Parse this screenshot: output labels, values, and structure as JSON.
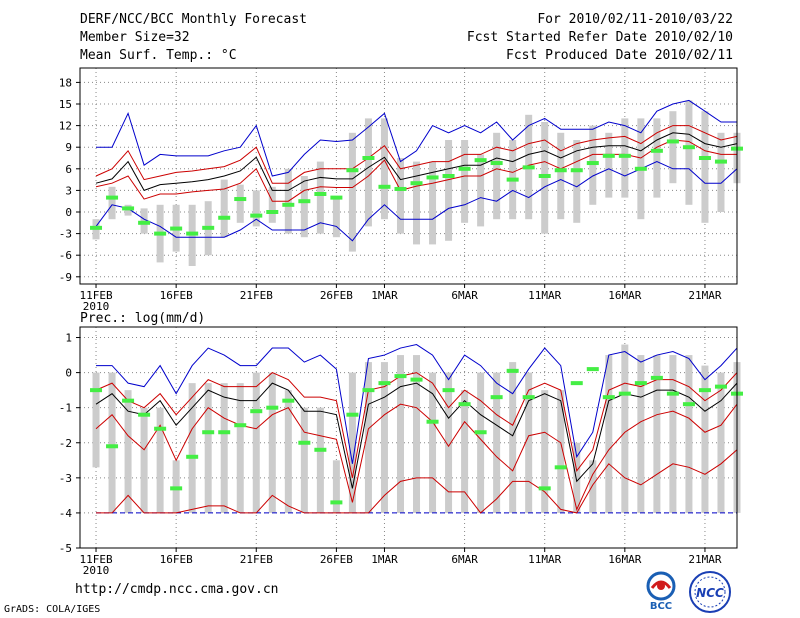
{
  "header": {
    "title": "DERF/NCC/BCC Monthly Forecast",
    "member_size": "Member Size=32",
    "variable_top": "Mean Surf. Temp.: °C",
    "forecast_range": "For 2010/02/11-2010/03/22",
    "start_date": "Fcst Started Refer Date 2010/02/10",
    "produced_date": "Fcst Produced Date 2010/02/11"
  },
  "footer": {
    "url": "http://cmdp.ncc.cma.gov.cn",
    "credit": "GrADS: COLA/IGES",
    "logo_bcc": "BCC",
    "logo_ncc": "NCC"
  },
  "colors": {
    "max_min": "#0000cc",
    "spread": "#cc0000",
    "mean": "#000000",
    "bar": "#cccccc",
    "median": "#44ee44",
    "floor": "#0000cc"
  },
  "chart_data": [
    {
      "type": "boxplot-ensemble",
      "title": "Mean Surf. Temp.: °C",
      "ylim": [
        -10,
        20
      ],
      "yticks": [
        -9,
        -6,
        -3,
        0,
        3,
        6,
        9,
        12,
        15,
        18
      ],
      "xticks": [
        {
          "day": 0,
          "label": "11FEB",
          "sub": "2010"
        },
        {
          "day": 5,
          "label": "16FEB"
        },
        {
          "day": 10,
          "label": "21FEB"
        },
        {
          "day": 15,
          "label": "26FEB"
        },
        {
          "day": 18,
          "label": "1MAR"
        },
        {
          "day": 23,
          "label": "6MAR"
        },
        {
          "day": 28,
          "label": "11MAR"
        },
        {
          "day": 33,
          "label": "16MAR"
        },
        {
          "day": 38,
          "label": "21MAR"
        }
      ],
      "xlim": [
        -1,
        40
      ],
      "series": [
        {
          "name": "max",
          "values": [
            9,
            9,
            13.7,
            6.5,
            8,
            7.8,
            7.8,
            7.8,
            8.5,
            9,
            12,
            5,
            5.5,
            8,
            10,
            9.8,
            10,
            11.8,
            13.7,
            7,
            8.5,
            12,
            11,
            12,
            11,
            12.5,
            10,
            12,
            13,
            11.5,
            11.5,
            11.5,
            12.5,
            12,
            11,
            14,
            15,
            15.5,
            14,
            12.5,
            12.5
          ]
        },
        {
          "name": "upper",
          "values": [
            5,
            6,
            8.5,
            4.5,
            5,
            5.5,
            5.7,
            6,
            6.3,
            7.2,
            9,
            4,
            4,
            5.5,
            6,
            6,
            6,
            7.5,
            9.2,
            6,
            6.5,
            7,
            7,
            8,
            8,
            9,
            8.5,
            9.5,
            10,
            8.5,
            9.5,
            10,
            10.3,
            10.5,
            9.5,
            11,
            12,
            12,
            11,
            10,
            10.5
          ]
        },
        {
          "name": "mean",
          "values": [
            4,
            4.6,
            7,
            3,
            3.8,
            4,
            4.2,
            4.5,
            5,
            5.7,
            7.6,
            3,
            3,
            4.3,
            4.8,
            4.6,
            4.6,
            6.2,
            7.6,
            4.5,
            5,
            5.5,
            6,
            6.5,
            6.5,
            7.5,
            7,
            8,
            8.5,
            7.5,
            8.5,
            9,
            9.2,
            9.2,
            8.5,
            10,
            11,
            10.8,
            9.5,
            9,
            9.5
          ]
        },
        {
          "name": "lower",
          "values": [
            3.5,
            4,
            5,
            1.8,
            2.5,
            2.5,
            2.8,
            3,
            3.2,
            4,
            6,
            1.5,
            1.5,
            3,
            3.5,
            3.4,
            3.4,
            5,
            7.2,
            3,
            3.6,
            4,
            4.5,
            5,
            5,
            6,
            5.5,
            6.5,
            7,
            6,
            7,
            8,
            8,
            8,
            7.5,
            9,
            10,
            9.8,
            8.5,
            8,
            8
          ]
        },
        {
          "name": "min",
          "values": [
            -2,
            1,
            0.5,
            -1,
            -2,
            -3.5,
            -3.5,
            -3.5,
            -3.5,
            -2.5,
            -1,
            -2.5,
            -2.5,
            -2.5,
            -1.5,
            -2,
            -4,
            -1,
            1,
            -1,
            -1,
            -1,
            0.5,
            1,
            2,
            1.5,
            3,
            2,
            3.5,
            4.5,
            3.5,
            5,
            6,
            5,
            6,
            7,
            6,
            6,
            4,
            4,
            6
          ]
        },
        {
          "name": "median",
          "values": [
            -2.2,
            2,
            0.5,
            -1.5,
            -3,
            -2.3,
            -3,
            -2.2,
            -0.8,
            1.8,
            -0.5,
            0,
            1,
            1.5,
            2.5,
            2,
            5.8,
            7.5,
            3.5,
            3.2,
            4,
            4.8,
            5,
            6,
            7.2,
            6.8,
            4.5,
            6.2,
            5,
            5.8,
            5.8,
            6.8,
            7.8,
            7.8,
            6,
            8.5,
            9.8,
            9,
            7.5,
            7,
            8.8
          ]
        },
        {
          "name": "bar_top",
          "values": [
            -1,
            3.5,
            1,
            0.5,
            1,
            1,
            1,
            1.5,
            4.5,
            3.8,
            3,
            3.5,
            6,
            5,
            7,
            2,
            11,
            13,
            13,
            7.5,
            7,
            7,
            10,
            10,
            8,
            11,
            10,
            13.5,
            12.5,
            11,
            10,
            12,
            11,
            13,
            13,
            13,
            14,
            15.5,
            14,
            11,
            11
          ]
        },
        {
          "name": "bar_bottom",
          "values": [
            -3.8,
            -1,
            -0.5,
            -3,
            -7,
            -5.5,
            -7.5,
            -6,
            -3.5,
            -1.5,
            -2,
            -1.5,
            -3,
            -3.5,
            -3,
            -3.5,
            -5.5,
            -2,
            -1,
            -3,
            -4.5,
            -4.5,
            -4,
            -1.5,
            -2,
            -1,
            -1,
            -1,
            -3,
            -1,
            -1.5,
            1,
            2,
            2,
            -1,
            2,
            4,
            1,
            -1.5,
            0,
            4
          ]
        }
      ]
    },
    {
      "type": "boxplot-ensemble",
      "title": "Prec.: log(mm/d)",
      "ylim": [
        -5,
        1.3
      ],
      "yticks": [
        -5,
        -4,
        -3,
        -2,
        -1,
        0,
        1
      ],
      "xticks": [
        {
          "day": 0,
          "label": "11FEB",
          "sub": "2010"
        },
        {
          "day": 5,
          "label": "16FEB"
        },
        {
          "day": 10,
          "label": "21FEB"
        },
        {
          "day": 15,
          "label": "26FEB"
        },
        {
          "day": 18,
          "label": "1MAR"
        },
        {
          "day": 23,
          "label": "6MAR"
        },
        {
          "day": 28,
          "label": "11MAR"
        },
        {
          "day": 33,
          "label": "16MAR"
        },
        {
          "day": 38,
          "label": "21MAR"
        }
      ],
      "xlim": [
        -1,
        40
      ],
      "floor": -4,
      "series": [
        {
          "name": "max",
          "values": [
            0.2,
            0.2,
            -0.3,
            -0.4,
            0.2,
            -0.6,
            0.2,
            0.7,
            0.5,
            0.2,
            0.2,
            0.7,
            0.7,
            0.3,
            0.5,
            0.1,
            -2.6,
            0.4,
            0.5,
            0.7,
            0.8,
            0.5,
            -0.2,
            0.5,
            0.2,
            -0.3,
            -0.6,
            0.1,
            0.7,
            0.2,
            -2.4,
            -1.7,
            0.5,
            0.6,
            0.3,
            0.5,
            0.6,
            0.4,
            -0.2,
            0.2,
            0.7
          ]
        },
        {
          "name": "upper",
          "values": [
            -0.5,
            -0.3,
            -0.8,
            -1,
            -0.6,
            -1.2,
            -0.7,
            -0.2,
            -0.4,
            -0.4,
            -0.4,
            0,
            -0.2,
            -0.7,
            -0.7,
            -0.8,
            -3,
            -0.5,
            -0.4,
            -0.1,
            0,
            -0.3,
            -1,
            -0.5,
            -0.8,
            -1.2,
            -1.5,
            -0.5,
            -0.3,
            -0.5,
            -2.8,
            -2.2,
            -0.5,
            -0.3,
            -0.4,
            -0.2,
            -0.2,
            -0.4,
            -0.8,
            -0.5,
            0
          ]
        },
        {
          "name": "mean",
          "values": [
            -0.9,
            -0.6,
            -1.1,
            -1.2,
            -0.8,
            -1.5,
            -1,
            -0.5,
            -0.7,
            -0.8,
            -0.8,
            -0.3,
            -0.5,
            -1.1,
            -1.1,
            -1.2,
            -3.3,
            -0.9,
            -0.7,
            -0.4,
            -0.3,
            -0.6,
            -1.3,
            -0.8,
            -1.2,
            -1.5,
            -1.8,
            -0.8,
            -0.6,
            -0.8,
            -3.1,
            -2.6,
            -0.8,
            -0.6,
            -0.7,
            -0.5,
            -0.5,
            -0.7,
            -1.1,
            -0.8,
            -0.3
          ]
        },
        {
          "name": "lower",
          "values": [
            -1.6,
            -1.2,
            -1.8,
            -2.2,
            -1.5,
            -2.5,
            -1.6,
            -1,
            -1.3,
            -1.5,
            -1.6,
            -1.2,
            -1,
            -1.7,
            -1.8,
            -1.9,
            -3.7,
            -1.6,
            -1.2,
            -0.9,
            -1,
            -1.4,
            -2.1,
            -1.4,
            -1.9,
            -2.4,
            -2.8,
            -1.8,
            -1.7,
            -2,
            -3.9,
            -2.9,
            -2.2,
            -1.7,
            -1.4,
            -1.2,
            -1.1,
            -1.3,
            -1.7,
            -1.5,
            -0.9
          ]
        },
        {
          "name": "lowest",
          "values": [
            -4,
            -4,
            -3.5,
            -4,
            -4,
            -4,
            -3.9,
            -3.8,
            -3.8,
            -4,
            -4,
            -3.5,
            -3.8,
            -4,
            -4,
            -4,
            -4,
            -4,
            -3.5,
            -3.1,
            -3,
            -3,
            -3.4,
            -3.4,
            -4,
            -3.6,
            -3.1,
            -3.1,
            -3.4,
            -3.9,
            -4,
            -3.2,
            -2.6,
            -3,
            -3.2,
            -2.9,
            -2.6,
            -2.7,
            -2.9,
            -2.6,
            -2.2
          ]
        },
        {
          "name": "median",
          "values": [
            -0.5,
            -2.1,
            -0.8,
            -1.2,
            -1.6,
            -3.3,
            -2.4,
            -1.7,
            -1.7,
            -1.5,
            -1.1,
            -1,
            -0.8,
            -2,
            -2.2,
            -3.7,
            -1.2,
            -0.5,
            -0.3,
            -0.1,
            -0.2,
            -1.4,
            -0.5,
            -0.9,
            -1.7,
            -0.7,
            0.05,
            -0.7,
            -3.3,
            -2.7,
            -0.3,
            0.1,
            -0.7,
            -0.6,
            -0.3,
            -0.15,
            -0.6,
            -0.9,
            -0.5,
            -0.4,
            -0.6
          ]
        },
        {
          "name": "bar_top",
          "values": [
            0,
            0,
            -0.5,
            -1,
            -1,
            -2.5,
            -0.3,
            -0.3,
            -0.3,
            -0.3,
            0,
            0,
            -0.5,
            -1,
            -1,
            -2.5,
            0,
            0.3,
            0.3,
            0.5,
            0.5,
            0,
            0,
            -0.5,
            0,
            0,
            0.3,
            0,
            -0.5,
            -0.5,
            -2,
            -2.5,
            0.5,
            0.8,
            0.5,
            0.5,
            0.5,
            0.5,
            0.2,
            0,
            0.3
          ]
        },
        {
          "name": "bar_bottom",
          "values": [
            -2.7,
            -4,
            -4,
            -4,
            -4,
            -4,
            -4,
            -4,
            -4,
            -4,
            -4,
            -4,
            -4,
            -4,
            -4,
            -4,
            -4,
            -4,
            -4,
            -4,
            -4,
            -4,
            -4,
            -4,
            -4,
            -4,
            -4,
            -4,
            -4,
            -4,
            -4,
            -4,
            -4,
            -4,
            -4,
            -4,
            -4,
            -4,
            -4,
            -4,
            -4
          ]
        }
      ]
    }
  ]
}
